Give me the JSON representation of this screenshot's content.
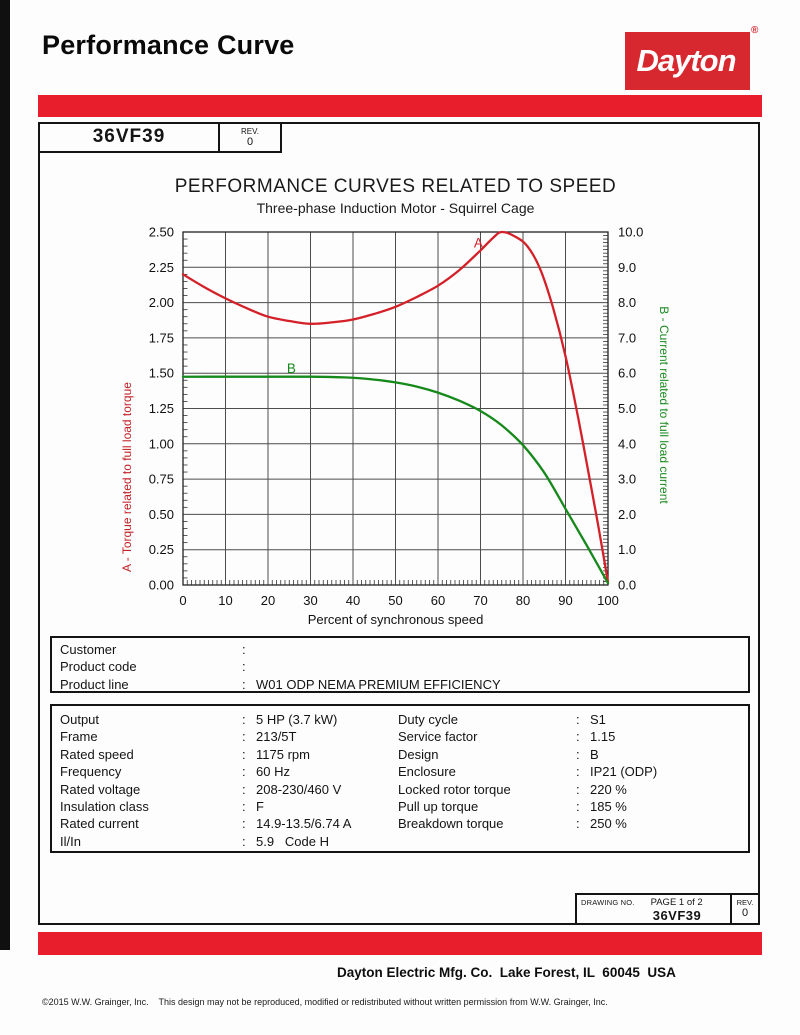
{
  "ui": {
    "colon": ":"
  },
  "colors": {
    "brand_red": "#e81e2c",
    "logo_red": "#d7282f"
  },
  "header": {
    "title": "Performance Curve",
    "logo_text": "Dayton",
    "logo_registered": "®"
  },
  "part_box": {
    "part_number": "36VF39",
    "rev_label": "REV.",
    "rev_value": "0"
  },
  "chart_data": {
    "type": "line",
    "title": "PERFORMANCE CURVES RELATED TO SPEED",
    "subtitle": "Three-phase Induction Motor - Squirrel Cage",
    "xlabel": "Percent of synchronous speed",
    "xlim": [
      0,
      100
    ],
    "x_ticks": [
      "0",
      "10",
      "20",
      "30",
      "40",
      "50",
      "60",
      "70",
      "80",
      "90",
      "100"
    ],
    "grid": true,
    "legend_position": "none",
    "left_axis": {
      "label": "A - Torque related to full load torque",
      "color": "#c42127",
      "min": 0,
      "max": 2.5,
      "ticks": [
        "2.50",
        "2.25",
        "2.00",
        "1.75",
        "1.50",
        "1.25",
        "1.00",
        "0.75",
        "0.50",
        "0.25",
        "0.00"
      ]
    },
    "right_axis": {
      "label": "B - Current related to full load current",
      "color": "#1d8b22",
      "min": 0,
      "max": 10,
      "ticks": [
        "10.0",
        "9.0",
        "8.0",
        "7.0",
        "6.0",
        "5.0",
        "4.0",
        "3.0",
        "2.0",
        "1.0",
        "0.0"
      ]
    },
    "series": [
      {
        "name": "A - Torque related to full load torque",
        "label": "A",
        "axis": "left",
        "color": "#d42028",
        "label_x": 69.5,
        "label_y": 2.39,
        "points": [
          [
            0,
            2.2
          ],
          [
            5,
            2.11
          ],
          [
            10,
            2.03
          ],
          [
            15,
            1.96
          ],
          [
            20,
            1.9
          ],
          [
            25,
            1.87
          ],
          [
            30,
            1.85
          ],
          [
            35,
            1.86
          ],
          [
            40,
            1.88
          ],
          [
            45,
            1.92
          ],
          [
            50,
            1.97
          ],
          [
            55,
            2.04
          ],
          [
            60,
            2.12
          ],
          [
            65,
            2.23
          ],
          [
            70,
            2.37
          ],
          [
            73,
            2.46
          ],
          [
            75,
            2.5
          ],
          [
            78,
            2.47
          ],
          [
            81,
            2.4
          ],
          [
            84,
            2.24
          ],
          [
            87,
            1.97
          ],
          [
            90,
            1.62
          ],
          [
            93,
            1.18
          ],
          [
            96,
            0.7
          ],
          [
            98,
            0.37
          ],
          [
            100,
            0.02
          ]
        ]
      },
      {
        "name": "B - Current related to full load current",
        "label": "B",
        "axis": "right",
        "color": "#16891b",
        "label_x": 25.5,
        "label_y": 6.0,
        "points": [
          [
            0,
            5.9
          ],
          [
            10,
            5.9
          ],
          [
            20,
            5.9
          ],
          [
            30,
            5.9
          ],
          [
            38,
            5.88
          ],
          [
            45,
            5.82
          ],
          [
            50,
            5.74
          ],
          [
            55,
            5.62
          ],
          [
            60,
            5.45
          ],
          [
            65,
            5.22
          ],
          [
            70,
            4.93
          ],
          [
            75,
            4.52
          ],
          [
            80,
            3.96
          ],
          [
            85,
            3.18
          ],
          [
            90,
            2.16
          ],
          [
            95,
            1.12
          ],
          [
            100,
            0.05
          ]
        ]
      }
    ]
  },
  "info_box": {
    "rows": [
      {
        "label": "Customer",
        "value": ""
      },
      {
        "label": "Product code",
        "value": ""
      },
      {
        "label": "Product line",
        "value": "W01 ODP NEMA PREMIUM EFFICIENCY"
      }
    ]
  },
  "spec_box": {
    "left": [
      {
        "label": "Output",
        "value": "5 HP (3.7 kW)"
      },
      {
        "label": "Frame",
        "value": "213/5T"
      },
      {
        "label": "Rated speed",
        "value": "1175 rpm"
      },
      {
        "label": "Frequency",
        "value": "60 Hz"
      },
      {
        "label": "Rated voltage",
        "value": "208-230/460 V"
      },
      {
        "label": "Insulation class",
        "value": "F"
      },
      {
        "label": "Rated current",
        "value": "14.9-13.5/6.74 A"
      },
      {
        "label": "Il/In",
        "value": "5.9   Code H"
      }
    ],
    "right": [
      {
        "label": "Duty cycle",
        "value": "S1"
      },
      {
        "label": "Service factor",
        "value": "1.15"
      },
      {
        "label": "Design",
        "value": "B"
      },
      {
        "label": "Enclosure",
        "value": "IP21 (ODP)"
      },
      {
        "label": "Locked rotor torque",
        "value": "220 %"
      },
      {
        "label": "Pull up torque",
        "value": "185 %"
      },
      {
        "label": "Breakdown torque",
        "value": "250 %"
      }
    ]
  },
  "drawing_box": {
    "drawing_no_label": "DRAWING NO.",
    "page_label": "PAGE 1 of 2",
    "number": "36VF39",
    "rev_label": "REV.",
    "rev_value": "0"
  },
  "footer": {
    "company_line": "Dayton Electric Mfg. Co.  Lake Forest, IL  60045  USA",
    "copyright": "©2015 W.W. Grainger, Inc.    This design may not be reproduced, modified or redistributed without written permission from W.W. Grainger, Inc."
  }
}
